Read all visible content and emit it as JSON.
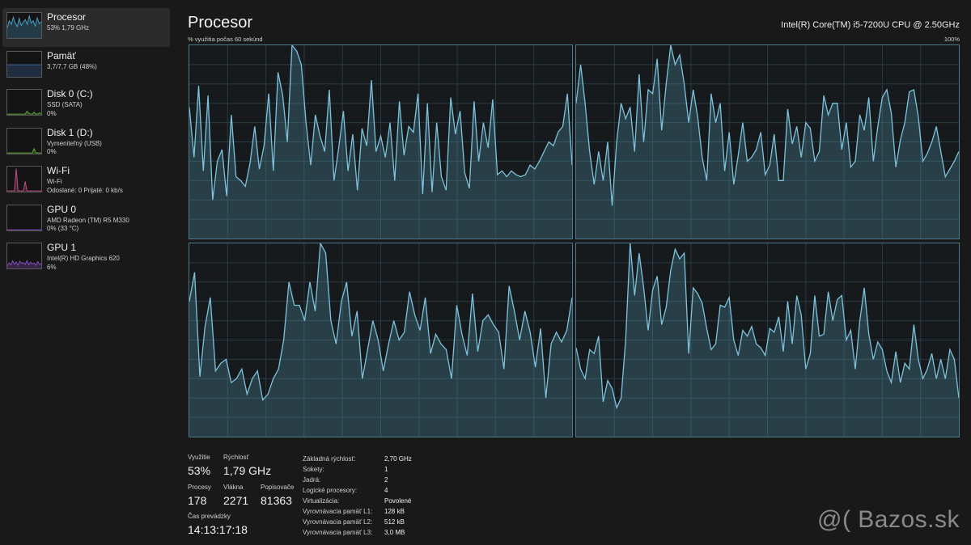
{
  "sidebar": {
    "items": [
      {
        "title": "Procesor",
        "lines": [
          "53%  1,79 GHz"
        ],
        "color": "#4aa3c8",
        "selected": true,
        "spark": [
          40,
          70,
          55,
          85,
          60,
          45,
          80,
          50,
          65,
          75,
          55,
          90,
          60,
          70,
          48,
          82,
          58,
          66
        ]
      },
      {
        "title": "Pamäť",
        "lines": [
          "3,7/7,7 GB (48%)"
        ],
        "color": "#3f6fb4",
        "selected": false,
        "spark": [
          48,
          48,
          48,
          48,
          48,
          48,
          48,
          48,
          48,
          48,
          48,
          48,
          48,
          48,
          48,
          48,
          48,
          48
        ]
      },
      {
        "title": "Disk 0 (C:)",
        "lines": [
          "SSD (SATA)",
          "0%"
        ],
        "color": "#5fae3a",
        "selected": false,
        "spark": [
          0,
          0,
          0,
          0,
          0,
          0,
          0,
          0,
          0,
          0,
          0,
          12,
          3,
          0,
          0,
          8,
          0,
          0,
          5,
          0
        ]
      },
      {
        "title": "Disk 1 (D:)",
        "lines": [
          "Vymeniteľný (USB)",
          "0%"
        ],
        "color": "#5fae3a",
        "selected": false,
        "spark": [
          0,
          0,
          0,
          0,
          0,
          0,
          0,
          0,
          0,
          0,
          0,
          0,
          0,
          0,
          0,
          18,
          0,
          0,
          0,
          0
        ]
      },
      {
        "title": "Wi-Fi",
        "lines": [
          "Wi-Fi",
          "Odoslané: 0 Prijaté: 0 kb/s"
        ],
        "color": "#c0508b",
        "selected": false,
        "spark": [
          0,
          0,
          0,
          0,
          0,
          95,
          0,
          0,
          0,
          0,
          40,
          0,
          0,
          0,
          0,
          0,
          0,
          0,
          0,
          0
        ]
      },
      {
        "title": "GPU 0",
        "lines": [
          "AMD Radeon (TM) R5 M330",
          "0%  (33 °C)"
        ],
        "color": "#8f4fc4",
        "selected": false,
        "spark": [
          0,
          0,
          0,
          0,
          0,
          0,
          0,
          0,
          0,
          0,
          0,
          0,
          0,
          0,
          0,
          0,
          0,
          0,
          0,
          0
        ]
      },
      {
        "title": "GPU 1",
        "lines": [
          "Intel(R) HD Graphics 620",
          "6%"
        ],
        "color": "#8f4fc4",
        "selected": false,
        "spark": [
          8,
          20,
          12,
          30,
          15,
          25,
          10,
          28,
          18,
          22,
          14,
          30,
          12,
          24,
          16,
          20,
          10,
          26,
          14,
          18
        ]
      }
    ]
  },
  "header": {
    "title": "Procesor",
    "cpu_name": "Intel(R) Core(TM) i5-7200U CPU @ 2.50GHz",
    "axis_label": "% využitia počas 60 sekúnd",
    "axis_max": "100%"
  },
  "graph_color": "#7ec3dc",
  "graphs": [
    [
      68,
      42,
      79,
      35,
      74,
      20,
      40,
      46,
      22,
      64,
      32,
      30,
      27,
      39,
      58,
      36,
      48,
      75,
      35,
      86,
      74,
      50,
      100,
      97,
      90,
      60,
      38,
      64,
      53,
      45,
      77,
      30,
      47,
      66,
      35,
      54,
      25,
      57,
      48,
      82,
      45,
      53,
      42,
      60,
      30,
      71,
      43,
      58,
      55,
      75,
      23,
      70,
      24,
      60,
      32,
      25,
      73,
      54,
      66,
      34,
      26,
      71,
      40,
      60,
      47,
      72,
      33,
      35,
      32,
      35,
      33,
      32,
      33,
      38,
      36,
      40,
      45,
      50,
      48,
      55,
      58,
      75,
      38
    ],
    [
      70,
      90,
      70,
      45,
      28,
      45,
      30,
      50,
      17,
      50,
      70,
      62,
      68,
      45,
      85,
      50,
      77,
      75,
      93,
      56,
      80,
      100,
      90,
      95,
      80,
      60,
      77,
      63,
      42,
      30,
      75,
      60,
      70,
      35,
      55,
      28,
      43,
      60,
      40,
      42,
      46,
      55,
      33,
      38,
      54,
      30,
      30,
      67,
      49,
      58,
      42,
      60,
      57,
      40,
      45,
      74,
      64,
      70,
      70,
      46,
      60,
      37,
      40,
      64,
      56,
      73,
      40,
      58,
      73,
      77,
      65,
      37,
      51,
      60,
      76,
      77,
      63,
      40,
      44,
      50,
      58,
      45,
      32,
      36,
      40,
      45
    ],
    [
      70,
      85,
      31,
      57,
      72,
      34,
      38,
      40,
      28,
      30,
      35,
      22,
      30,
      34,
      19,
      22,
      30,
      35,
      50,
      80,
      68,
      68,
      60,
      80,
      65,
      100,
      95,
      60,
      48,
      70,
      80,
      52,
      65,
      30,
      45,
      60,
      50,
      34,
      48,
      60,
      50,
      54,
      75,
      63,
      55,
      72,
      43,
      53,
      48,
      45,
      30,
      68,
      53,
      42,
      74,
      44,
      60,
      63,
      58,
      54,
      35,
      78,
      65,
      50,
      65,
      54,
      36,
      56,
      20,
      48,
      54,
      49,
      55,
      72
    ],
    [
      46,
      35,
      30,
      45,
      43,
      52,
      18,
      29,
      25,
      15,
      20,
      50,
      100,
      73,
      95,
      77,
      55,
      76,
      83,
      58,
      67,
      86,
      97,
      92,
      95,
      43,
      77,
      74,
      69,
      56,
      45,
      48,
      68,
      67,
      72,
      50,
      42,
      55,
      52,
      57,
      48,
      46,
      42,
      56,
      54,
      62,
      44,
      70,
      48,
      73,
      63,
      35,
      43,
      73,
      52,
      53,
      75,
      60,
      71,
      73,
      50,
      55,
      35,
      60,
      77,
      53,
      40,
      49,
      45,
      34,
      28,
      44,
      28,
      38,
      35,
      58,
      40,
      30,
      35,
      43,
      30,
      40,
      30,
      45,
      40,
      20
    ]
  ],
  "stats": {
    "utilization": {
      "label": "Využitie",
      "value": "53%"
    },
    "speed": {
      "label": "Rýchlosť",
      "value": "1,79 GHz"
    },
    "processes": {
      "label": "Procesy",
      "value": "178"
    },
    "threads": {
      "label": "Vlákna",
      "value": "2271"
    },
    "handles": {
      "label": "Popisovače",
      "value": "81363"
    },
    "uptime": {
      "label": "Čas prevádzky",
      "value": "14:13:17:18"
    }
  },
  "details": [
    {
      "key": "Základná rýchlosť:",
      "value": "2,70 GHz"
    },
    {
      "key": "Sokety:",
      "value": "1"
    },
    {
      "key": "Jadrá:",
      "value": "2"
    },
    {
      "key": "Logické procesory:",
      "value": "4"
    },
    {
      "key": "Virtualizácia:",
      "value": "Povolené"
    },
    {
      "key": "Vyrovnávacia pamäť L1:",
      "value": "128 kB"
    },
    {
      "key": "Vyrovnávacia pamäť L2:",
      "value": "512 kB"
    },
    {
      "key": "Vyrovnávacia pamäť L3:",
      "value": "3,0 MB"
    }
  ],
  "watermark": "@( Bazos.sk"
}
